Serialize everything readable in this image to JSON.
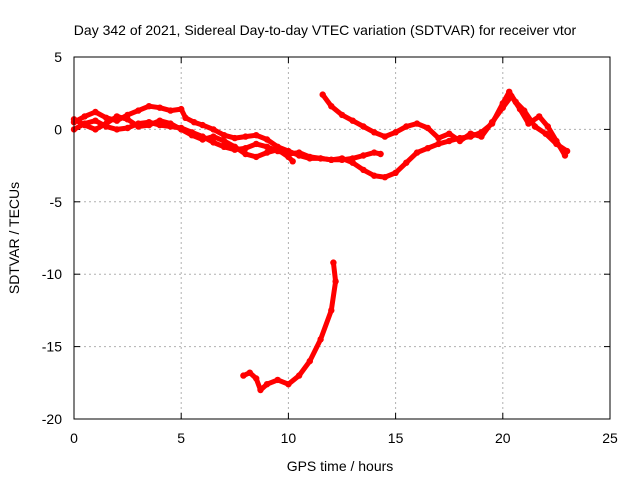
{
  "chart_data": {
    "type": "scatter",
    "title": "Day 342 of 2021, Sidereal Day-to-day VTEC variation (SDTVAR) for receiver vtor",
    "xlabel": "GPS time / hours",
    "ylabel": "SDTVAR / TECUs",
    "xlim": [
      0,
      25
    ],
    "ylim": [
      -20,
      5
    ],
    "xticks": [
      0,
      5,
      10,
      15,
      20,
      25
    ],
    "yticks": [
      -20,
      -15,
      -10,
      -5,
      0,
      5
    ],
    "grid": true,
    "series_color": "#ff0000",
    "series": [
      {
        "name": "track-a",
        "points": [
          [
            0,
            0.5
          ],
          [
            0.5,
            0.9
          ],
          [
            1,
            1.2
          ],
          [
            1.5,
            0.8
          ],
          [
            2,
            0.6
          ],
          [
            2.5,
            1.0
          ],
          [
            3,
            1.3
          ],
          [
            3.5,
            1.6
          ],
          [
            4,
            1.5
          ],
          [
            4.5,
            1.3
          ],
          [
            5,
            1.4
          ],
          [
            5.2,
            0.8
          ],
          [
            5.6,
            0.5
          ],
          [
            6,
            0.3
          ],
          [
            6.5,
            0.0
          ],
          [
            7,
            -0.4
          ],
          [
            7.5,
            -0.6
          ],
          [
            8,
            -0.5
          ],
          [
            8.5,
            -0.4
          ],
          [
            9,
            -0.7
          ],
          [
            9.5,
            -1.2
          ],
          [
            10,
            -1.5
          ],
          [
            10.5,
            -1.8
          ],
          [
            11,
            -2.0
          ],
          [
            11.5,
            -2.0
          ],
          [
            12,
            -2.1
          ],
          [
            12.5,
            -2.1
          ],
          [
            13,
            -2.0
          ],
          [
            13.5,
            -1.8
          ],
          [
            14,
            -1.6
          ],
          [
            14.3,
            -1.7
          ]
        ]
      },
      {
        "name": "track-b",
        "points": [
          [
            0,
            0.0
          ],
          [
            0.5,
            0.4
          ],
          [
            1,
            0.6
          ],
          [
            1.5,
            0.2
          ],
          [
            2,
            0.0
          ],
          [
            2.5,
            0.1
          ],
          [
            3,
            0.4
          ],
          [
            3.5,
            0.5
          ],
          [
            4,
            0.3
          ],
          [
            4.5,
            0.2
          ],
          [
            5,
            0.1
          ],
          [
            5.5,
            -0.2
          ],
          [
            6,
            -0.5
          ],
          [
            6.5,
            -0.9
          ],
          [
            7,
            -1.2
          ],
          [
            7.5,
            -1.4
          ],
          [
            8,
            -1.3
          ],
          [
            8.5,
            -1.0
          ],
          [
            9,
            -1.2
          ],
          [
            9.5,
            -1.5
          ],
          [
            10,
            -1.7
          ],
          [
            10.5,
            -1.6
          ],
          [
            11,
            -1.9
          ],
          [
            11.5,
            -2.0
          ],
          [
            12,
            -2.1
          ],
          [
            12.5,
            -2.0
          ],
          [
            13,
            -2.3
          ],
          [
            13.5,
            -2.8
          ],
          [
            14,
            -3.2
          ],
          [
            14.5,
            -3.3
          ],
          [
            15,
            -3.0
          ],
          [
            15.5,
            -2.3
          ],
          [
            16,
            -1.6
          ],
          [
            16.5,
            -1.3
          ],
          [
            17,
            -1.0
          ],
          [
            17.5,
            -0.8
          ],
          [
            18,
            -0.6
          ],
          [
            18.5,
            -0.5
          ],
          [
            19,
            -0.2
          ],
          [
            19.5,
            0.4
          ],
          [
            20,
            1.8
          ],
          [
            20.3,
            2.6
          ],
          [
            20.6,
            1.9
          ],
          [
            21,
            1.3
          ],
          [
            21.5,
            0.2
          ],
          [
            22,
            -0.3
          ],
          [
            22.5,
            -1.0
          ],
          [
            23,
            -1.5
          ]
        ]
      },
      {
        "name": "track-c",
        "points": [
          [
            0,
            0.7
          ],
          [
            0.5,
            0.3
          ],
          [
            1,
            0.0
          ],
          [
            1.5,
            0.4
          ],
          [
            2,
            0.9
          ],
          [
            2.5,
            0.7
          ],
          [
            3,
            0.2
          ],
          [
            3.5,
            0.3
          ],
          [
            4,
            0.6
          ],
          [
            4.5,
            0.4
          ],
          [
            5,
            0.0
          ],
          [
            5.5,
            -0.4
          ],
          [
            6,
            -0.7
          ],
          [
            6.5,
            -0.5
          ],
          [
            7,
            -0.8
          ],
          [
            7.5,
            -1.2
          ],
          [
            8,
            -1.7
          ],
          [
            8.5,
            -1.9
          ],
          [
            9,
            -1.6
          ],
          [
            9.5,
            -1.4
          ],
          [
            10,
            -1.9
          ],
          [
            10.2,
            -2.2
          ]
        ]
      },
      {
        "name": "track-d",
        "points": [
          [
            11.6,
            2.4
          ],
          [
            12,
            1.6
          ],
          [
            12.5,
            1.0
          ],
          [
            13,
            0.6
          ],
          [
            13.5,
            0.2
          ],
          [
            14,
            -0.2
          ],
          [
            14.5,
            -0.5
          ],
          [
            15,
            -0.2
          ],
          [
            15.5,
            0.2
          ],
          [
            16,
            0.4
          ],
          [
            16.5,
            0.1
          ],
          [
            17,
            -0.6
          ],
          [
            17.5,
            -0.3
          ],
          [
            18,
            -0.8
          ],
          [
            18.5,
            -0.3
          ],
          [
            19,
            -0.5
          ],
          [
            19.5,
            0.5
          ],
          [
            20,
            1.5
          ],
          [
            20.4,
            2.3
          ],
          [
            20.8,
            1.4
          ],
          [
            21.2,
            0.4
          ],
          [
            21.7,
            0.9
          ],
          [
            22.1,
            0.2
          ],
          [
            22.5,
            -0.8
          ],
          [
            22.9,
            -1.8
          ]
        ]
      },
      {
        "name": "track-e",
        "points": [
          [
            7.9,
            -17.0
          ],
          [
            8.2,
            -16.8
          ],
          [
            8.5,
            -17.2
          ],
          [
            8.7,
            -18.0
          ],
          [
            9.0,
            -17.6
          ],
          [
            9.5,
            -17.3
          ],
          [
            10,
            -17.6
          ],
          [
            10.5,
            -17.0
          ],
          [
            11,
            -16.0
          ],
          [
            11.5,
            -14.5
          ],
          [
            12,
            -12.5
          ],
          [
            12.2,
            -10.5
          ],
          [
            12.1,
            -9.2
          ]
        ]
      }
    ]
  }
}
